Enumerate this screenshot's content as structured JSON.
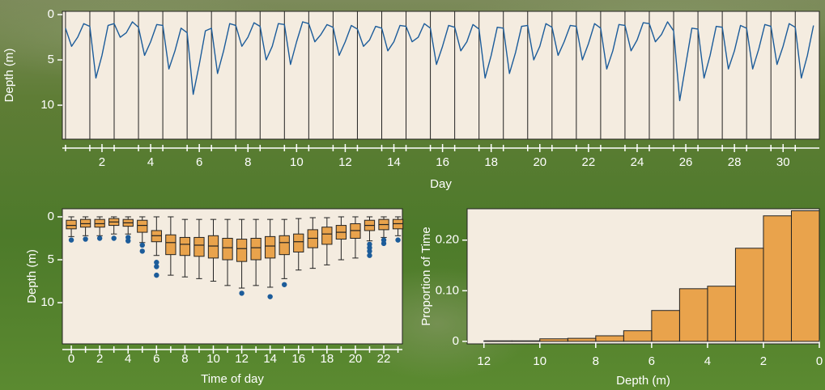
{
  "chart_data": [
    {
      "type": "line",
      "x_label": "Day",
      "y_label": "Depth (m)",
      "y_inverted": true,
      "grid": true,
      "color": "#1c5c9a",
      "xlim": [
        0.37,
        31.49
      ],
      "ylim": [
        -0.36,
        13.75
      ],
      "xticks": [
        2,
        4,
        6,
        8,
        10,
        12,
        14,
        16,
        18,
        20,
        22,
        24,
        26,
        28,
        30
      ],
      "xminorticks": [
        0.5,
        1.5,
        2.5,
        3.5,
        4.5,
        5.5,
        6.5,
        7.5,
        8.5,
        9.5,
        10.5,
        11.5,
        12.5,
        13.5,
        14.5,
        15.5,
        16.5,
        17.5,
        18.5,
        19.5,
        20.5,
        21.5,
        22.5,
        23.5,
        24.5,
        25.5,
        26.5,
        27.5,
        28.5,
        29.5,
        30.5
      ],
      "yticks": [
        0,
        5,
        10
      ],
      "x": [
        0.5,
        0.75,
        1,
        1.25,
        1.5,
        1.75,
        2,
        2.25,
        2.5,
        2.75,
        3,
        3.25,
        3.5,
        3.75,
        4,
        4.25,
        4.5,
        4.75,
        5,
        5.25,
        5.5,
        5.75,
        6,
        6.25,
        6.5,
        6.75,
        7,
        7.25,
        7.5,
        7.75,
        8,
        8.25,
        8.5,
        8.75,
        9,
        9.25,
        9.5,
        9.75,
        10,
        10.25,
        10.5,
        10.75,
        11,
        11.25,
        11.5,
        11.75,
        12,
        12.25,
        12.5,
        12.75,
        13,
        13.25,
        13.5,
        13.75,
        14,
        14.25,
        14.5,
        14.75,
        15,
        15.25,
        15.5,
        15.75,
        16,
        16.25,
        16.5,
        16.75,
        17,
        17.25,
        17.5,
        17.75,
        18,
        18.25,
        18.5,
        18.75,
        19,
        19.25,
        19.5,
        19.75,
        20,
        20.25,
        20.5,
        20.75,
        21,
        21.25,
        21.5,
        21.75,
        22,
        22.25,
        22.5,
        22.75,
        23,
        23.25,
        23.5,
        23.75,
        24,
        24.25,
        24.5,
        24.75,
        25,
        25.25,
        25.5,
        25.75,
        26,
        26.25,
        26.5,
        26.75,
        27,
        27.25,
        27.5,
        27.75,
        28,
        28.25,
        28.5,
        28.75,
        29,
        29.25,
        29.5,
        29.75,
        30,
        30.25,
        30.5,
        30.75,
        31,
        31.25
      ],
      "values": [
        1.5,
        3.5,
        2.5,
        1.0,
        1.3,
        7.0,
        4.5,
        1.2,
        1.0,
        2.5,
        2.0,
        0.8,
        1.4,
        4.5,
        3.0,
        1.1,
        1.2,
        6.0,
        4.0,
        1.5,
        2.0,
        8.8,
        5.5,
        1.8,
        1.5,
        6.5,
        4.0,
        1.0,
        1.2,
        3.5,
        2.5,
        0.9,
        1.3,
        5.0,
        3.5,
        1.0,
        1.1,
        5.5,
        3.0,
        0.8,
        1.0,
        3.0,
        2.2,
        1.1,
        1.4,
        4.5,
        3.0,
        1.2,
        1.6,
        3.5,
        2.8,
        1.3,
        1.5,
        4.0,
        3.0,
        1.2,
        1.3,
        3.0,
        2.5,
        1.0,
        1.5,
        5.5,
        3.5,
        1.2,
        1.4,
        4.0,
        3.0,
        1.1,
        1.6,
        7.0,
        4.5,
        1.4,
        1.5,
        6.5,
        4.2,
        1.3,
        1.2,
        5.0,
        3.5,
        1.0,
        1.4,
        4.5,
        3.0,
        1.2,
        1.3,
        5.0,
        3.2,
        1.0,
        1.5,
        6.0,
        4.0,
        1.1,
        1.2,
        4.0,
        2.8,
        0.9,
        1.0,
        3.0,
        2.2,
        0.8,
        1.8,
        9.5,
        5.5,
        1.5,
        1.6,
        7.0,
        4.5,
        1.3,
        1.4,
        6.0,
        4.0,
        1.2,
        1.5,
        6.0,
        3.8,
        1.1,
        1.3,
        5.5,
        3.5,
        1.0,
        1.4,
        7.0,
        4.5,
        1.2
      ]
    },
    {
      "type": "box",
      "x_label": "Time of day",
      "y_label": "Depth (m)",
      "y_inverted": true,
      "color": "#e9a34c",
      "outlier_color": "#1c5c9a",
      "xlim": [
        -0.63,
        23.31
      ],
      "ylim": [
        -0.94,
        14.8
      ],
      "xticks": [
        0,
        2,
        4,
        6,
        8,
        10,
        12,
        14,
        16,
        18,
        20,
        22
      ],
      "xminorticks": [
        1,
        3,
        5,
        7,
        9,
        11,
        13,
        15,
        17,
        19,
        21,
        23
      ],
      "yticks": [
        0,
        5,
        10
      ],
      "x": [
        0,
        1,
        2,
        3,
        4,
        5,
        6,
        7,
        8,
        9,
        10,
        11,
        12,
        13,
        14,
        15,
        16,
        17,
        18,
        19,
        20,
        21,
        22,
        23
      ],
      "whisker_min": [
        0,
        0,
        0,
        0,
        0,
        0,
        0,
        0,
        0.3,
        0.3,
        0.3,
        0.3,
        0.3,
        0.3,
        0.3,
        0.3,
        0.2,
        0.1,
        0.1,
        0,
        0,
        0,
        0,
        0
      ],
      "q1": [
        0.4,
        0.3,
        0.3,
        0.2,
        0.3,
        0.4,
        1.6,
        2.1,
        2.4,
        2.4,
        2.2,
        2.5,
        2.6,
        2.5,
        2.3,
        2.2,
        2.0,
        1.5,
        1.2,
        1.0,
        0.8,
        0.4,
        0.3,
        0.3
      ],
      "median": [
        1.0,
        0.8,
        0.8,
        0.6,
        0.7,
        1.0,
        2.2,
        3.0,
        3.2,
        3.3,
        3.4,
        3.6,
        3.7,
        3.6,
        3.4,
        3.0,
        2.9,
        2.5,
        2.0,
        1.8,
        1.6,
        1.0,
        0.9,
        0.8
      ],
      "q3": [
        1.4,
        1.2,
        1.2,
        1.0,
        1.1,
        1.8,
        2.9,
        4.4,
        4.5,
        4.6,
        4.8,
        5.0,
        5.2,
        5.0,
        4.8,
        4.4,
        4.1,
        3.6,
        3.2,
        2.6,
        2.5,
        1.6,
        1.5,
        1.4
      ],
      "whisker_max": [
        2.3,
        2.2,
        2.2,
        2.0,
        2.0,
        3.0,
        4.5,
        6.8,
        7.0,
        7.2,
        7.5,
        8.0,
        8.3,
        8.0,
        8.2,
        7.2,
        6.2,
        6.0,
        5.6,
        5.0,
        4.8,
        2.8,
        2.4,
        2.2
      ],
      "outliers": [
        [
          2.7
        ],
        [
          2.6
        ],
        [
          2.5
        ],
        [
          2.5
        ],
        [
          2.4,
          2.8
        ],
        [
          3.3,
          4.0
        ],
        [
          5.3,
          5.8,
          6.8
        ],
        [],
        [],
        [],
        [],
        [],
        [
          8.9
        ],
        [],
        [
          9.3
        ],
        [
          7.9
        ],
        [],
        [],
        [],
        [],
        [],
        [
          3.2,
          3.6,
          4.0,
          4.5
        ],
        [
          2.7,
          3.1
        ],
        [
          2.7
        ]
      ]
    },
    {
      "type": "histogram",
      "x_label": "Depth (m)",
      "y_label": "Proportion of Time",
      "color": "#e9a34c",
      "xlim": [
        12.6,
        0
      ],
      "ylim": [
        -0.005,
        0.262
      ],
      "xticks": [
        12,
        10,
        8,
        6,
        4,
        2,
        0
      ],
      "yticks": [
        0,
        {
          "value": 0.1,
          "label": "0.10"
        },
        {
          "value": 0.2,
          "label": "0.20"
        }
      ],
      "bins": [
        0,
        1,
        2,
        3,
        4,
        5,
        6,
        7,
        8,
        9,
        10,
        11,
        12
      ],
      "values": [
        0.258,
        0.248,
        0.184,
        0.109,
        0.104,
        0.061,
        0.021,
        0.011,
        0.006,
        0.005,
        0.001,
        0.001
      ]
    }
  ]
}
